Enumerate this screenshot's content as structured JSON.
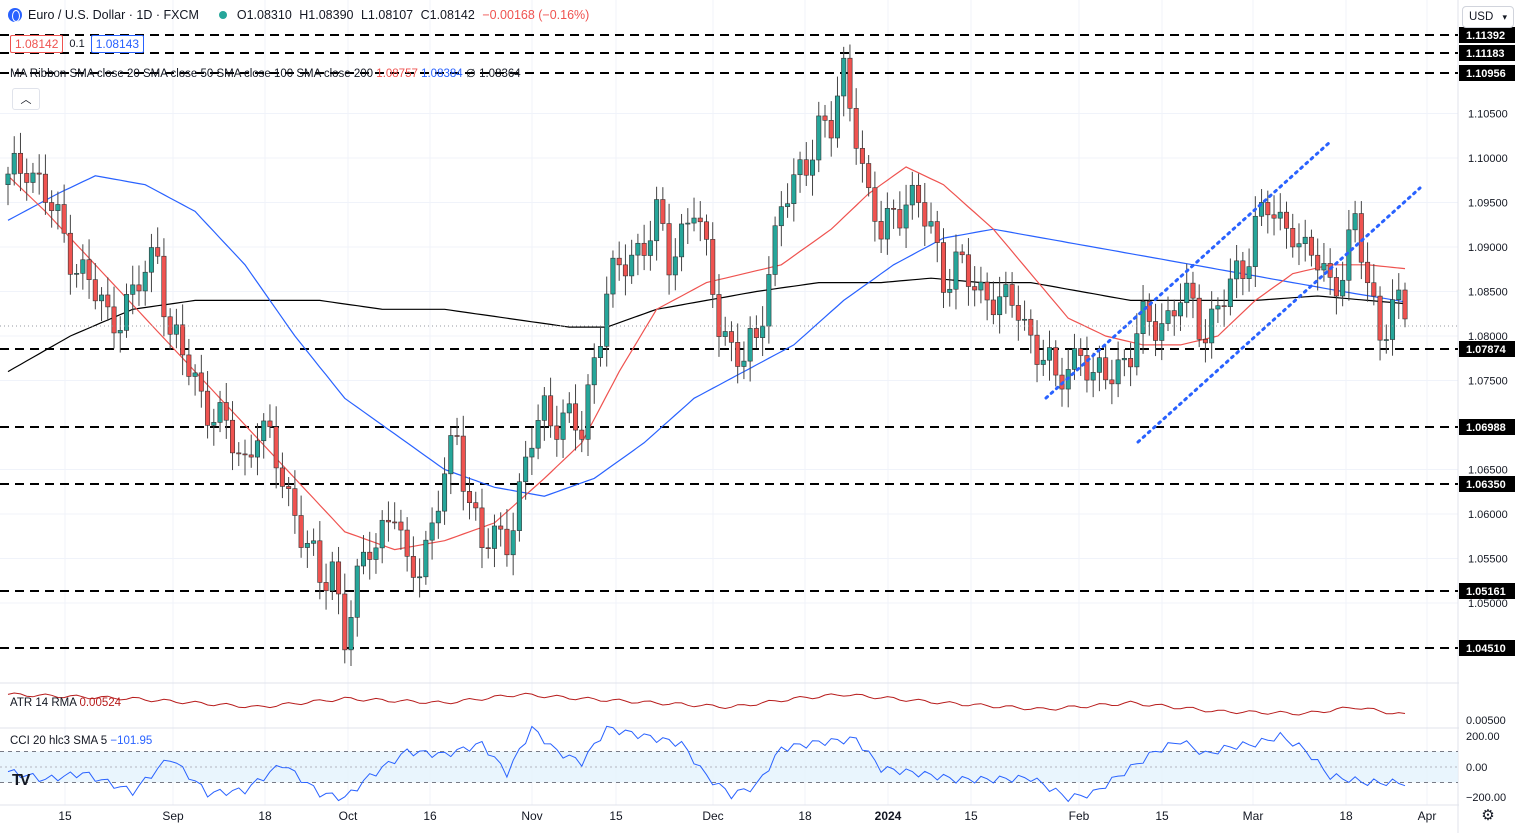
{
  "header": {
    "symbol": "Euro / U.S. Dollar · 1D · FXCM",
    "open": "O1.08310",
    "high": "H1.08390",
    "low": "L1.08107",
    "close": "C1.08142",
    "change": "−0.00168 (−0.16%)",
    "bid": "1.08142",
    "spread": "0.1",
    "ask": "1.08143",
    "currency": "USD"
  },
  "ma_ribbon": {
    "label": "MA Ribbon SMA close 20 SMA close 50 SMA close 100 SMA close 200",
    "v20": "1.08757",
    "v50": "1.08384",
    "v100": "∅",
    "v200": "1.08364"
  },
  "atr": {
    "label": "ATR 14 RMA",
    "value": "0.00524",
    "axis_label": "0.00500"
  },
  "cci": {
    "label": "CCI 20 hlc3 SMA 5",
    "value": "−101.95",
    "ticks": [
      "200.00",
      "0.00",
      "−200.00"
    ]
  },
  "colors": {
    "up": "#26a69a",
    "down": "#ef5350",
    "sma20": "#ef5350",
    "sma50": "#2962ff",
    "sma200": "#000000",
    "atr": "#b71c1c",
    "cci": "#2962ff",
    "trend": "#2962ff"
  },
  "chart_data": {
    "type": "candlestick",
    "ylim": [
      1.045,
      1.114
    ],
    "y_ticks": [
      "1.10500",
      "1.10000",
      "1.09500",
      "1.09000",
      "1.08500",
      "1.08000",
      "1.07500",
      "1.06500",
      "1.06000",
      "1.05500",
      "1.05000"
    ],
    "level_lines": [
      "1.11392",
      "1.11183",
      "1.10956",
      "1.07874",
      "1.06988",
      "1.06350",
      "1.05161",
      "1.04510"
    ],
    "x_labels": [
      "15",
      "Sep",
      "18",
      "Oct",
      "16",
      "Nov",
      "15",
      "Dec",
      "18",
      "2024",
      "15",
      "Feb",
      "15",
      "Mar",
      "18",
      "Apr"
    ],
    "close_keypoints": [
      [
        0,
        1.097
      ],
      [
        3,
        1.1
      ],
      [
        8,
        1.0925
      ],
      [
        12,
        1.087
      ],
      [
        16,
        1.082
      ],
      [
        20,
        1.084
      ],
      [
        24,
        1.09
      ],
      [
        26,
        1.08
      ],
      [
        30,
        1.075
      ],
      [
        34,
        1.07
      ],
      [
        38,
        1.066
      ],
      [
        40,
        1.07
      ],
      [
        44,
        1.0645
      ],
      [
        48,
        1.056
      ],
      [
        50,
        1.052
      ],
      [
        52,
        1.055
      ],
      [
        54,
        1.046
      ],
      [
        58,
        1.057
      ],
      [
        62,
        1.06
      ],
      [
        64,
        1.053
      ],
      [
        68,
        1.058
      ],
      [
        70,
        1.064
      ],
      [
        72,
        1.069
      ],
      [
        74,
        1.062
      ],
      [
        76,
        1.056
      ],
      [
        80,
        1.058
      ],
      [
        82,
        1.062
      ],
      [
        84,
        1.068
      ],
      [
        86,
        1.072
      ],
      [
        90,
        1.07
      ],
      [
        92,
        1.069
      ],
      [
        94,
        1.078
      ],
      [
        96,
        1.085
      ],
      [
        100,
        1.089
      ],
      [
        104,
        1.093
      ],
      [
        106,
        1.088
      ],
      [
        108,
        1.092
      ],
      [
        110,
        1.095
      ],
      [
        112,
        1.088
      ],
      [
        114,
        1.082
      ],
      [
        116,
        1.079
      ],
      [
        118,
        1.077
      ],
      [
        120,
        1.079
      ],
      [
        122,
        1.088
      ],
      [
        124,
        1.095
      ],
      [
        126,
        1.096
      ],
      [
        128,
        1.1
      ],
      [
        130,
        1.104
      ],
      [
        132,
        1.103
      ],
      [
        134,
        1.109
      ],
      [
        136,
        1.104
      ],
      [
        138,
        1.095
      ],
      [
        140,
        1.091
      ],
      [
        142,
        1.094
      ],
      [
        144,
        1.096
      ],
      [
        146,
        1.094
      ],
      [
        148,
        1.092
      ],
      [
        150,
        1.087
      ],
      [
        152,
        1.088
      ],
      [
        154,
        1.086
      ],
      [
        156,
        1.085
      ],
      [
        158,
        1.085
      ],
      [
        160,
        1.083
      ],
      [
        162,
        1.083
      ],
      [
        164,
        1.08
      ],
      [
        166,
        1.078
      ],
      [
        168,
        1.074
      ],
      [
        170,
        1.077
      ],
      [
        172,
        1.079
      ],
      [
        174,
        1.074
      ],
      [
        176,
        1.076
      ],
      [
        178,
        1.077
      ],
      [
        180,
        1.078
      ],
      [
        182,
        1.081
      ],
      [
        184,
        1.082
      ],
      [
        186,
        1.082
      ],
      [
        188,
        1.084
      ],
      [
        190,
        1.083
      ],
      [
        192,
        1.081
      ],
      [
        194,
        1.083
      ],
      [
        196,
        1.085
      ],
      [
        198,
        1.088
      ],
      [
        200,
        1.093
      ],
      [
        202,
        1.094
      ],
      [
        204,
        1.092
      ],
      [
        206,
        1.093
      ],
      [
        208,
        1.089
      ],
      [
        210,
        1.088
      ],
      [
        212,
        1.086
      ],
      [
        214,
        1.088
      ],
      [
        216,
        1.092
      ],
      [
        218,
        1.086
      ],
      [
        220,
        1.081
      ],
      [
        222,
        1.083
      ],
      [
        224,
        1.082
      ]
    ],
    "sma20_keypoints": [
      [
        0,
        1.098
      ],
      [
        6,
        1.094
      ],
      [
        14,
        1.088
      ],
      [
        22,
        1.082
      ],
      [
        30,
        1.076
      ],
      [
        38,
        1.07
      ],
      [
        46,
        1.064
      ],
      [
        54,
        1.058
      ],
      [
        62,
        1.056
      ],
      [
        70,
        1.057
      ],
      [
        78,
        1.059
      ],
      [
        86,
        1.064
      ],
      [
        92,
        1.068
      ],
      [
        98,
        1.076
      ],
      [
        104,
        1.083
      ],
      [
        112,
        1.086
      ],
      [
        118,
        1.087
      ],
      [
        124,
        1.088
      ],
      [
        132,
        1.092
      ],
      [
        138,
        1.096
      ],
      [
        144,
        1.099
      ],
      [
        150,
        1.097
      ],
      [
        158,
        1.092
      ],
      [
        164,
        1.087
      ],
      [
        170,
        1.082
      ],
      [
        176,
        1.08
      ],
      [
        182,
        1.079
      ],
      [
        188,
        1.079
      ],
      [
        194,
        1.08
      ],
      [
        200,
        1.084
      ],
      [
        206,
        1.087
      ],
      [
        212,
        1.088
      ],
      [
        218,
        1.088
      ],
      [
        224,
        1.08757
      ]
    ],
    "sma50_keypoints": [
      [
        0,
        1.093
      ],
      [
        8,
        1.096
      ],
      [
        14,
        1.098
      ],
      [
        22,
        1.097
      ],
      [
        30,
        1.094
      ],
      [
        38,
        1.088
      ],
      [
        46,
        1.08
      ],
      [
        54,
        1.073
      ],
      [
        62,
        1.069
      ],
      [
        70,
        1.065
      ],
      [
        78,
        1.063
      ],
      [
        86,
        1.062
      ],
      [
        94,
        1.064
      ],
      [
        102,
        1.068
      ],
      [
        110,
        1.073
      ],
      [
        118,
        1.076
      ],
      [
        126,
        1.079
      ],
      [
        134,
        1.084
      ],
      [
        142,
        1.088
      ],
      [
        150,
        1.091
      ],
      [
        158,
        1.092
      ],
      [
        166,
        1.091
      ],
      [
        174,
        1.09
      ],
      [
        182,
        1.089
      ],
      [
        190,
        1.088
      ],
      [
        198,
        1.087
      ],
      [
        206,
        1.086
      ],
      [
        214,
        1.085
      ],
      [
        224,
        1.08384
      ]
    ],
    "sma200_keypoints": [
      [
        0,
        1.076
      ],
      [
        10,
        1.08
      ],
      [
        20,
        1.083
      ],
      [
        30,
        1.084
      ],
      [
        40,
        1.084
      ],
      [
        50,
        1.084
      ],
      [
        60,
        1.083
      ],
      [
        70,
        1.083
      ],
      [
        80,
        1.082
      ],
      [
        90,
        1.081
      ],
      [
        96,
        1.081
      ],
      [
        104,
        1.083
      ],
      [
        112,
        1.084
      ],
      [
        120,
        1.085
      ],
      [
        130,
        1.086
      ],
      [
        140,
        1.086
      ],
      [
        148,
        1.0865
      ],
      [
        156,
        1.086
      ],
      [
        164,
        1.086
      ],
      [
        172,
        1.085
      ],
      [
        180,
        1.084
      ],
      [
        190,
        1.084
      ],
      [
        200,
        1.084
      ],
      [
        210,
        1.0845
      ],
      [
        218,
        1.084
      ],
      [
        224,
        1.08364
      ]
    ],
    "atr_keypoints": [
      [
        0,
        0.0062
      ],
      [
        20,
        0.006
      ],
      [
        40,
        0.0056
      ],
      [
        54,
        0.006
      ],
      [
        70,
        0.0058
      ],
      [
        82,
        0.0062
      ],
      [
        92,
        0.006
      ],
      [
        104,
        0.0058
      ],
      [
        116,
        0.0056
      ],
      [
        126,
        0.006
      ],
      [
        134,
        0.0062
      ],
      [
        150,
        0.0058
      ],
      [
        166,
        0.0055
      ],
      [
        180,
        0.0058
      ],
      [
        194,
        0.0054
      ],
      [
        208,
        0.0053
      ],
      [
        216,
        0.0056
      ],
      [
        224,
        0.00524
      ]
    ],
    "cci_keypoints": [
      [
        0,
        -30
      ],
      [
        6,
        -80
      ],
      [
        12,
        -40
      ],
      [
        20,
        -160
      ],
      [
        26,
        60
      ],
      [
        32,
        -170
      ],
      [
        38,
        -150
      ],
      [
        44,
        20
      ],
      [
        50,
        -170
      ],
      [
        54,
        -200
      ],
      [
        58,
        -60
      ],
      [
        64,
        100
      ],
      [
        70,
        80
      ],
      [
        76,
        150
      ],
      [
        80,
        -40
      ],
      [
        84,
        250
      ],
      [
        88,
        100
      ],
      [
        92,
        30
      ],
      [
        96,
        250
      ],
      [
        102,
        200
      ],
      [
        108,
        150
      ],
      [
        112,
        -60
      ],
      [
        116,
        -180
      ],
      [
        120,
        -120
      ],
      [
        124,
        120
      ],
      [
        130,
        160
      ],
      [
        136,
        180
      ],
      [
        140,
        -10
      ],
      [
        146,
        -40
      ],
      [
        152,
        -80
      ],
      [
        158,
        -80
      ],
      [
        164,
        -70
      ],
      [
        170,
        -200
      ],
      [
        174,
        -170
      ],
      [
        178,
        -60
      ],
      [
        184,
        100
      ],
      [
        188,
        170
      ],
      [
        192,
        80
      ],
      [
        196,
        130
      ],
      [
        200,
        150
      ],
      [
        204,
        200
      ],
      [
        208,
        110
      ],
      [
        212,
        -60
      ],
      [
        218,
        -100
      ],
      [
        224,
        -101.95
      ]
    ]
  }
}
